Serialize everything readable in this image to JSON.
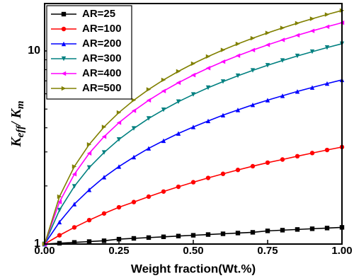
{
  "chart_data": {
    "type": "line",
    "log_y": true,
    "x_label": "Weight fraction(Wt.%)",
    "y_label": [
      "K",
      "eff",
      "/ ",
      "K",
      "m"
    ],
    "x": [
      0,
      0.05,
      0.1,
      0.15,
      0.2,
      0.25,
      0.3,
      0.35,
      0.4,
      0.45,
      0.5,
      0.55,
      0.6,
      0.65,
      0.7,
      0.75,
      0.8,
      0.85,
      0.9,
      0.95,
      1
    ],
    "series": [
      {
        "name": "AR=25",
        "color": "#000000",
        "marker": "square",
        "values": [
          1,
          1.01,
          1.02,
          1.03,
          1.04,
          1.06,
          1.07,
          1.08,
          1.09,
          1.1,
          1.11,
          1.12,
          1.13,
          1.14,
          1.15,
          1.17,
          1.18,
          1.19,
          1.2,
          1.21,
          1.22
        ]
      },
      {
        "name": "AR=100",
        "color": "#ff0000",
        "marker": "circle",
        "values": [
          1,
          1.11,
          1.22,
          1.33,
          1.44,
          1.55,
          1.65,
          1.76,
          1.87,
          1.98,
          2.09,
          2.2,
          2.31,
          2.42,
          2.53,
          2.64,
          2.74,
          2.85,
          2.96,
          3.07,
          3.18
        ]
      },
      {
        "name": "AR=200",
        "color": "#0000ff",
        "marker": "triangle-up",
        "values": [
          1,
          1.3,
          1.61,
          1.91,
          2.22,
          2.52,
          2.82,
          3.13,
          3.43,
          3.74,
          4.04,
          4.34,
          4.65,
          4.95,
          5.26,
          5.56,
          5.86,
          6.17,
          6.47,
          6.78,
          7.08
        ]
      },
      {
        "name": "AR=300",
        "color": "#008080",
        "marker": "triangle-down",
        "values": [
          1,
          1.5,
          1.99,
          2.49,
          2.98,
          3.48,
          3.97,
          4.47,
          4.96,
          5.46,
          5.95,
          6.45,
          6.94,
          7.44,
          7.93,
          8.43,
          8.92,
          9.42,
          9.91,
          10.41,
          10.9
        ]
      },
      {
        "name": "AR=400",
        "color": "#ff00ff",
        "marker": "triangle-left",
        "values": [
          1,
          1.65,
          2.3,
          2.95,
          3.6,
          4.25,
          4.9,
          5.55,
          6.2,
          6.85,
          7.5,
          8.15,
          8.8,
          9.45,
          10.1,
          10.75,
          11.4,
          12.05,
          12.7,
          13.35,
          14
        ]
      },
      {
        "name": "AR=500",
        "color": "#808000",
        "marker": "triangle-right",
        "values": [
          1,
          1.76,
          2.52,
          3.28,
          4.04,
          4.8,
          5.56,
          6.32,
          7.08,
          7.84,
          8.6,
          9.36,
          10.12,
          10.88,
          11.64,
          12.4,
          13.16,
          13.92,
          14.68,
          15.44,
          16.2
        ]
      }
    ],
    "xlim": [
      0,
      1
    ],
    "xticks": [
      {
        "value": 0,
        "label": "0.00"
      },
      {
        "value": 0.25,
        "label": "0.25"
      },
      {
        "value": 0.5,
        "label": "0.50"
      },
      {
        "value": 0.75,
        "label": "0.75"
      },
      {
        "value": 1,
        "label": "1.00"
      }
    ],
    "ylim": [
      1,
      17.6
    ],
    "yticks": [
      1,
      10
    ],
    "y_minor_ticks": [
      2,
      3,
      4,
      5,
      6,
      7,
      8,
      9
    ],
    "legend": "upper-left"
  }
}
